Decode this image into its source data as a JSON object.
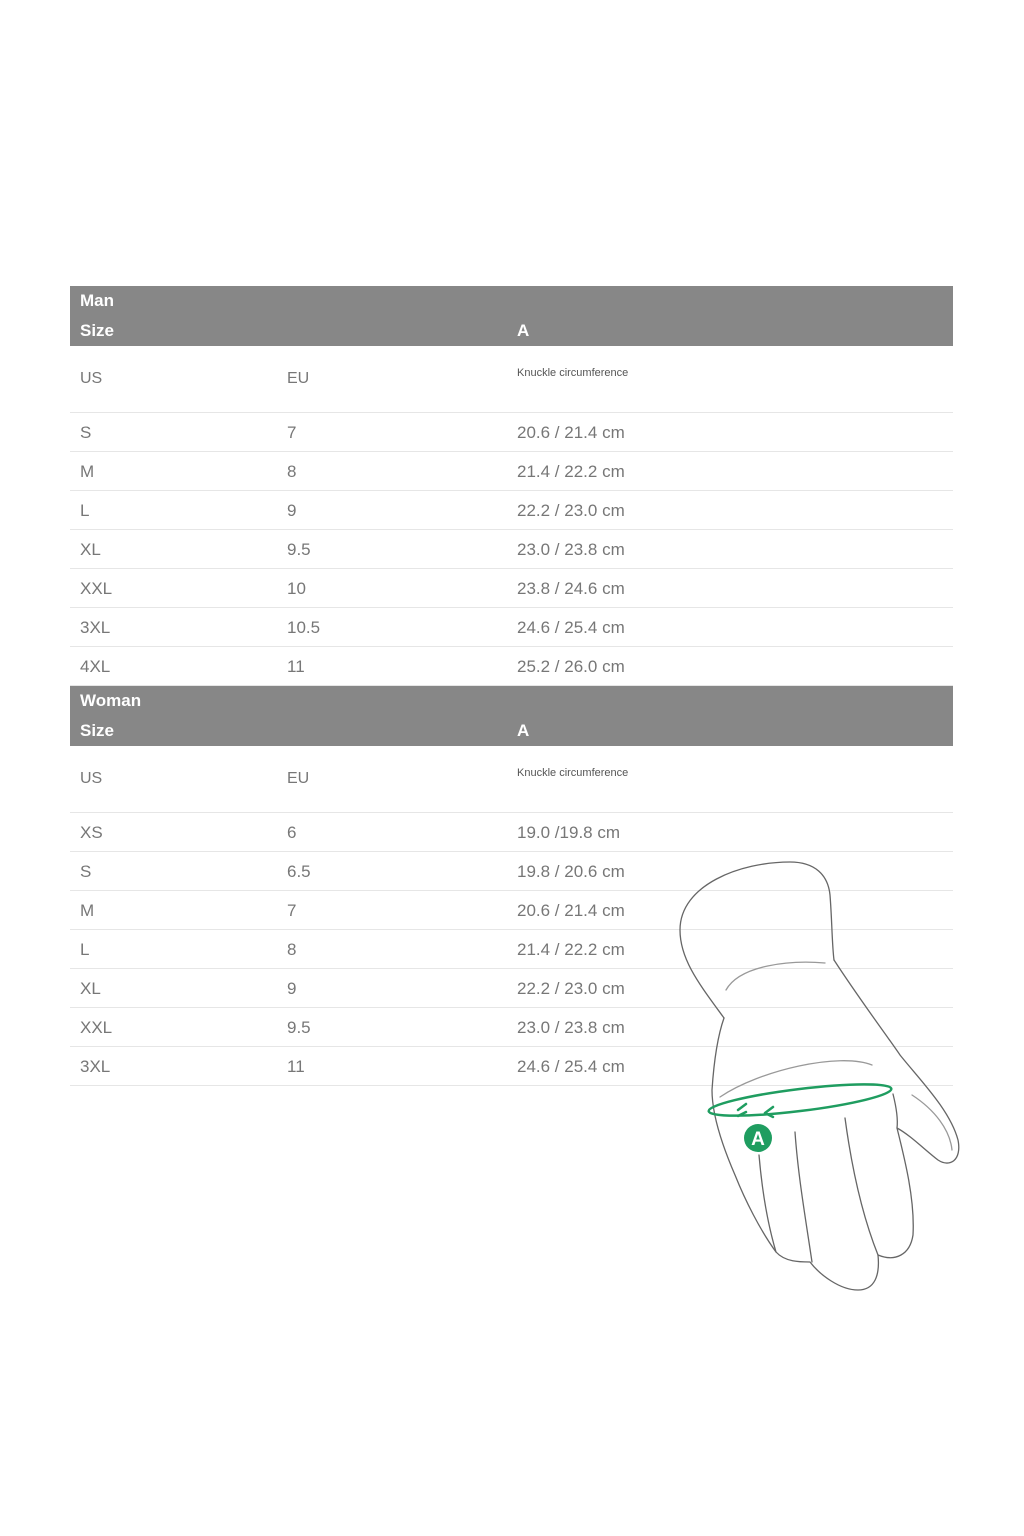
{
  "sections": [
    {
      "title": "Man",
      "size_label": "Size",
      "measure_label": "A",
      "columns": [
        "US",
        "EU",
        "Knuckle circumference"
      ],
      "rows": [
        [
          "S",
          "7",
          "20.6 / 21.4 cm"
        ],
        [
          "M",
          "8",
          "21.4 / 22.2 cm"
        ],
        [
          "L",
          "9",
          "22.2 / 23.0 cm"
        ],
        [
          "XL",
          "9.5",
          "23.0 / 23.8 cm"
        ],
        [
          "XXL",
          "10",
          "23.8 / 24.6 cm"
        ],
        [
          "3XL",
          "10.5",
          "24.6 / 25.4 cm"
        ],
        [
          "4XL",
          "11",
          "25.2 / 26.0 cm"
        ]
      ]
    },
    {
      "title": "Woman",
      "size_label": "Size",
      "measure_label": "A",
      "columns": [
        "US",
        "EU",
        "Knuckle circumference"
      ],
      "rows": [
        [
          "XS",
          "6",
          "19.0 /19.8 cm"
        ],
        [
          "S",
          "6.5",
          "19.8 / 20.6 cm"
        ],
        [
          "M",
          "7",
          "20.6 / 21.4 cm"
        ],
        [
          "L",
          "8",
          "21.4 / 22.2 cm"
        ],
        [
          "XL",
          "9",
          "22.2 / 23.0 cm"
        ],
        [
          "XXL",
          "9.5",
          "23.0 / 23.8 cm"
        ],
        [
          "3XL",
          "11",
          "24.6 / 25.4 cm"
        ]
      ]
    }
  ],
  "illustration": {
    "icon": "glove-measurement-illustration",
    "marker_label": "A",
    "accent_color": "#1f9d60",
    "header_color": "#878787"
  }
}
